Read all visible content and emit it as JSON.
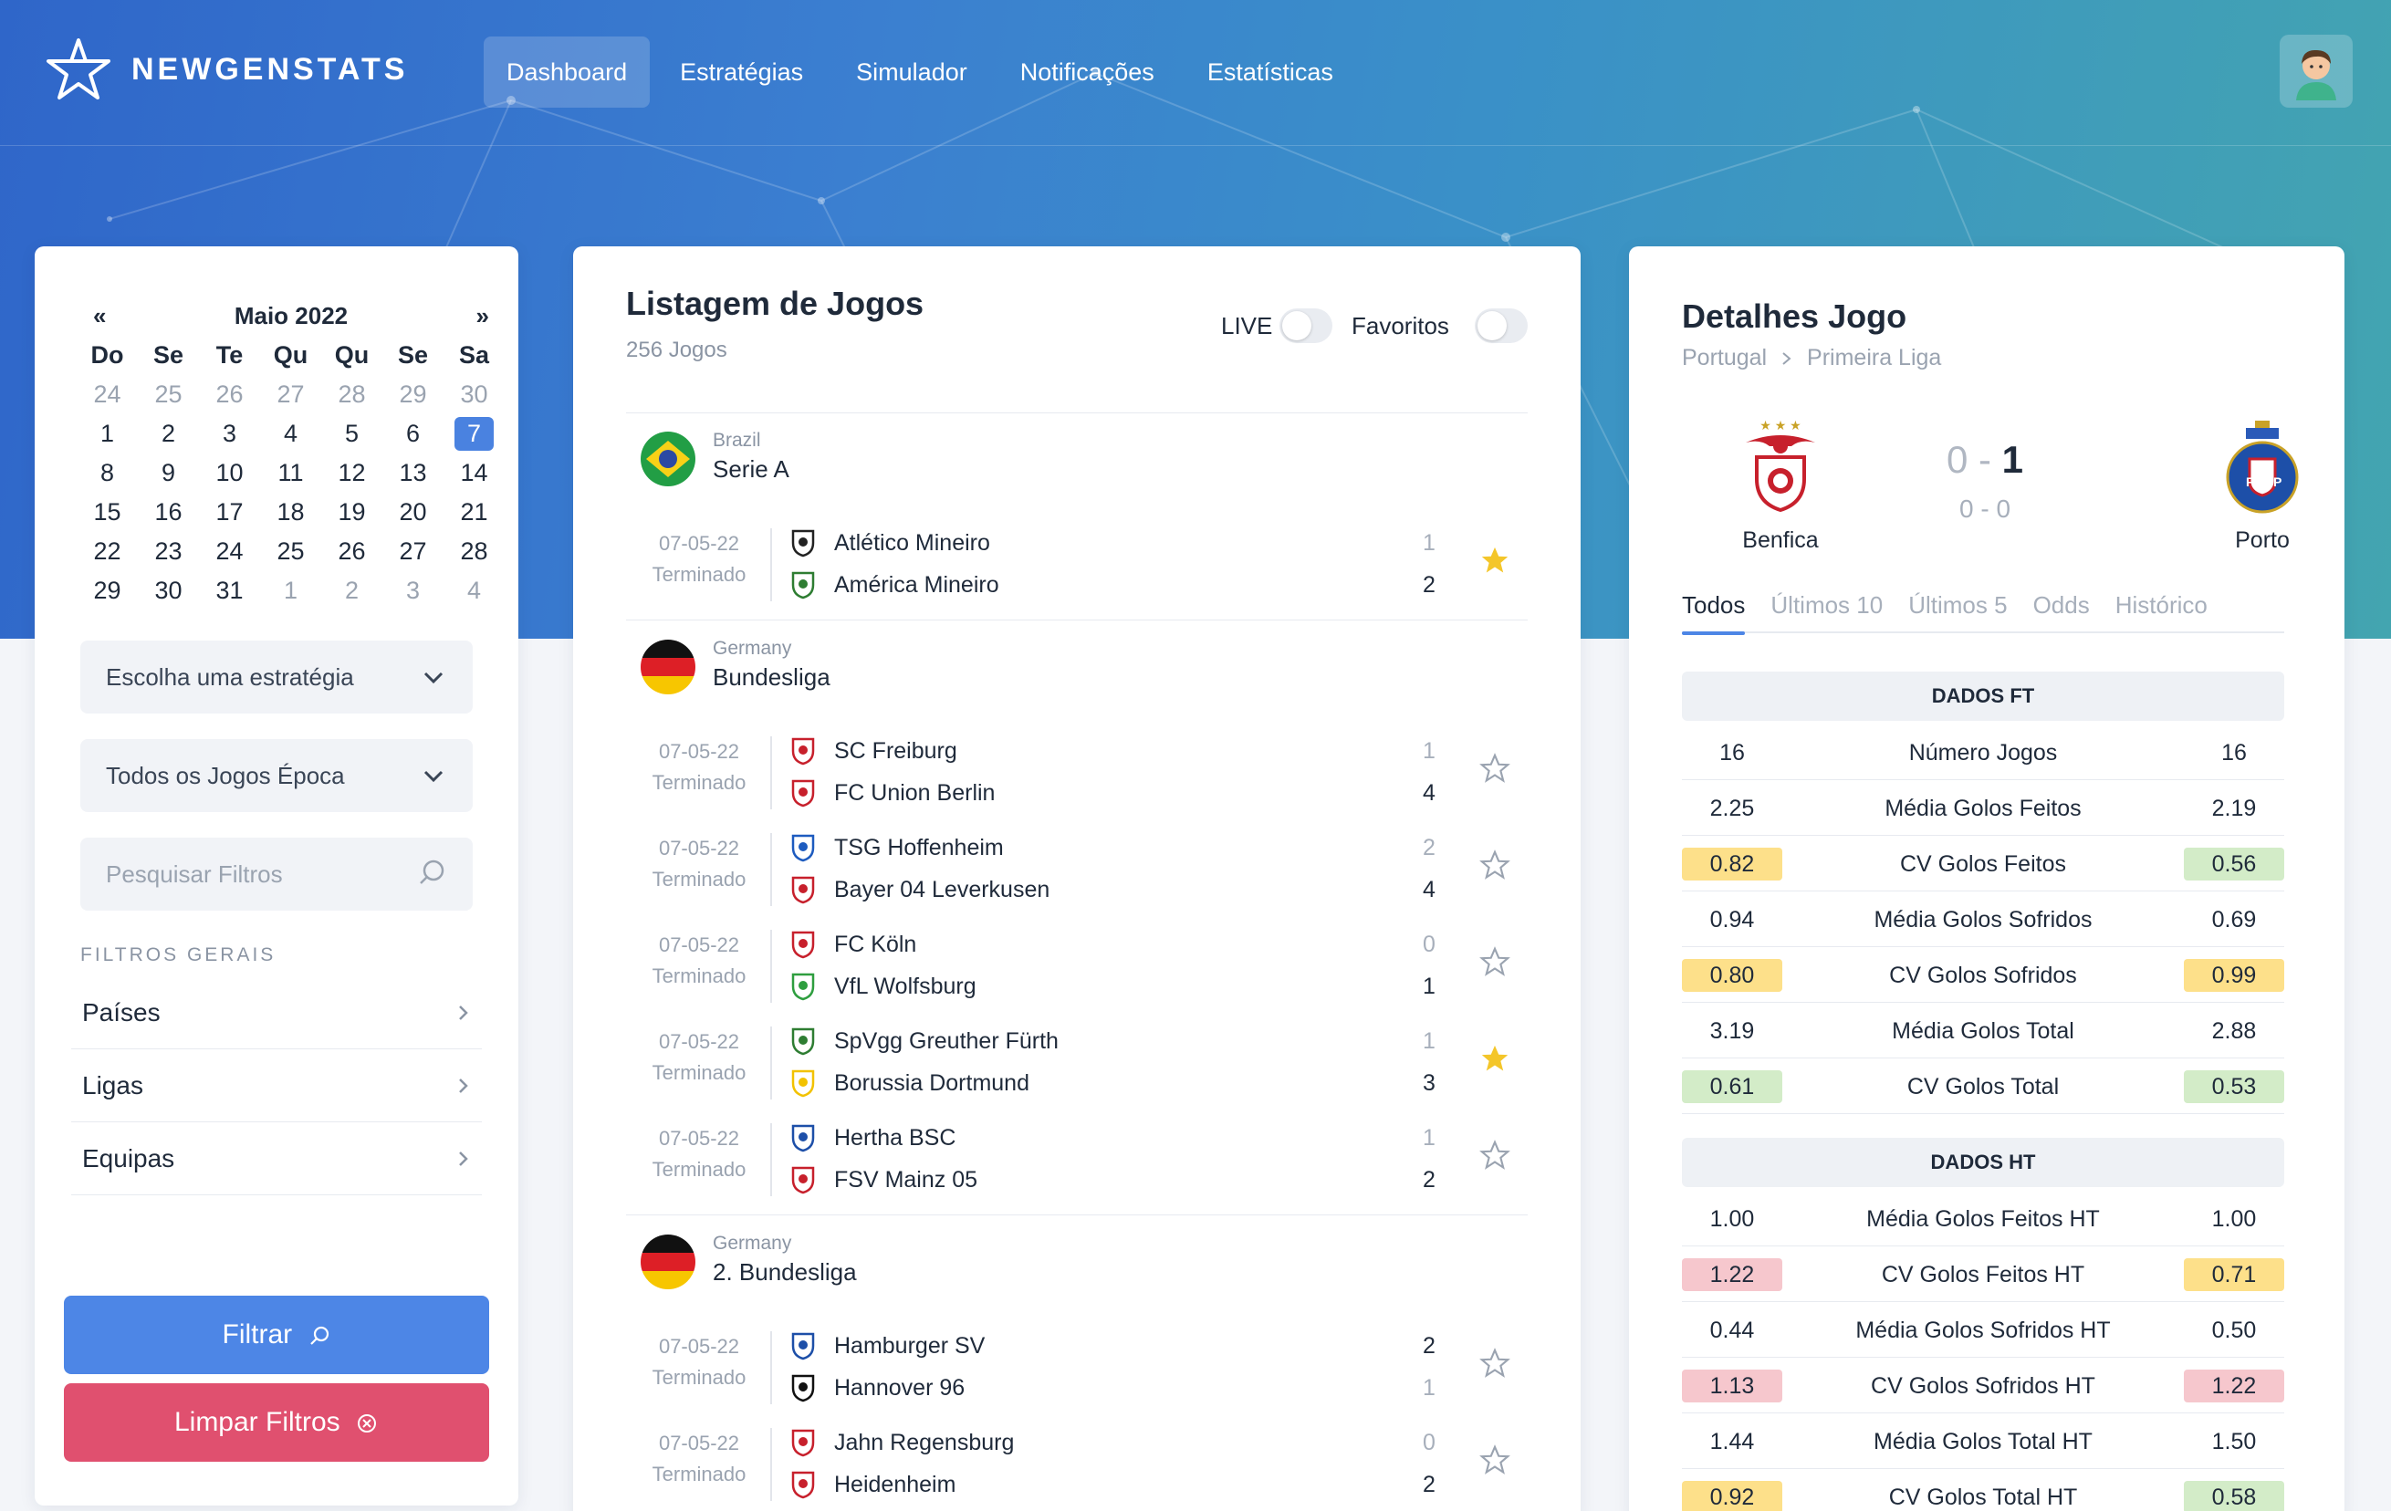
{
  "brand": {
    "name": "NEWGENSTATS"
  },
  "nav": [
    {
      "label": "Dashboard",
      "active": true
    },
    {
      "label": "Estratégias"
    },
    {
      "label": "Simulador"
    },
    {
      "label": "Notificações"
    },
    {
      "label": "Estatísticas"
    }
  ],
  "calendar": {
    "prev": "«",
    "next": "»",
    "month": "Maio 2022",
    "weekdays": [
      "Do",
      "Se",
      "Te",
      "Qu",
      "Qu",
      "Se",
      "Sa"
    ],
    "days": [
      {
        "d": "24",
        "m": true
      },
      {
        "d": "25",
        "m": true
      },
      {
        "d": "26",
        "m": true
      },
      {
        "d": "27",
        "m": true
      },
      {
        "d": "28",
        "m": true
      },
      {
        "d": "29",
        "m": true
      },
      {
        "d": "30",
        "m": true
      },
      {
        "d": "1"
      },
      {
        "d": "2"
      },
      {
        "d": "3"
      },
      {
        "d": "4"
      },
      {
        "d": "5"
      },
      {
        "d": "6"
      },
      {
        "d": "7",
        "s": true
      },
      {
        "d": "8"
      },
      {
        "d": "9"
      },
      {
        "d": "10"
      },
      {
        "d": "11"
      },
      {
        "d": "12"
      },
      {
        "d": "13"
      },
      {
        "d": "14"
      },
      {
        "d": "15"
      },
      {
        "d": "16"
      },
      {
        "d": "17"
      },
      {
        "d": "18"
      },
      {
        "d": "19"
      },
      {
        "d": "20"
      },
      {
        "d": "21"
      },
      {
        "d": "22"
      },
      {
        "d": "23"
      },
      {
        "d": "24"
      },
      {
        "d": "25"
      },
      {
        "d": "26"
      },
      {
        "d": "27"
      },
      {
        "d": "28"
      },
      {
        "d": "29"
      },
      {
        "d": "30"
      },
      {
        "d": "31"
      },
      {
        "d": "1",
        "m": true
      },
      {
        "d": "2",
        "m": true
      },
      {
        "d": "3",
        "m": true
      },
      {
        "d": "4",
        "m": true
      }
    ]
  },
  "filters": {
    "strategy_placeholder": "Escolha uma estratégia",
    "season_select": "Todos os Jogos Época",
    "search_placeholder": "Pesquisar Filtros",
    "section_title": "FILTROS GERAIS",
    "items": [
      "Países",
      "Ligas",
      "Equipas"
    ],
    "filter_button": "Filtrar",
    "clear_button": "Limpar Filtros"
  },
  "games": {
    "title": "Listagem de Jogos",
    "count": "256 Jogos",
    "live_label": "LIVE",
    "fav_label": "Favoritos",
    "leagues": [
      {
        "country": "Brazil",
        "name": "Serie A",
        "flag": "brazil",
        "matches": [
          {
            "date": "07-05-22",
            "status": "Terminado",
            "home": "Atlético Mineiro",
            "away": "América Mineiro",
            "hs": "1",
            "as": "2",
            "fav": true
          }
        ]
      },
      {
        "country": "Germany",
        "name": "Bundesliga",
        "flag": "germany",
        "matches": [
          {
            "date": "07-05-22",
            "status": "Terminado",
            "home": "SC Freiburg",
            "away": "FC Union Berlin",
            "hs": "1",
            "as": "4",
            "fav": false
          },
          {
            "date": "07-05-22",
            "status": "Terminado",
            "home": "TSG Hoffenheim",
            "away": "Bayer 04 Leverkusen",
            "hs": "2",
            "as": "4",
            "fav": false
          },
          {
            "date": "07-05-22",
            "status": "Terminado",
            "home": "FC Köln",
            "away": "VfL Wolfsburg",
            "hs": "0",
            "as": "1",
            "fav": false
          },
          {
            "date": "07-05-22",
            "status": "Terminado",
            "home": "SpVgg Greuther Fürth",
            "away": "Borussia Dortmund",
            "hs": "1",
            "as": "3",
            "fav": true
          },
          {
            "date": "07-05-22",
            "status": "Terminado",
            "home": "Hertha BSC",
            "away": "FSV Mainz 05",
            "hs": "1",
            "as": "2",
            "fav": false
          }
        ]
      },
      {
        "country": "Germany",
        "name": "2. Bundesliga",
        "flag": "germany",
        "matches": [
          {
            "date": "07-05-22",
            "status": "Terminado",
            "home": "Hamburger SV",
            "away": "Hannover 96",
            "hs": "2",
            "as": "1",
            "fav": false
          },
          {
            "date": "07-05-22",
            "status": "Terminado",
            "home": "Jahn Regensburg",
            "away": "Heidenheim",
            "hs": "0",
            "as": "2",
            "fav": false
          }
        ]
      }
    ]
  },
  "details": {
    "title": "Detalhes Jogo",
    "country": "Portugal",
    "league": "Primeira Liga",
    "home": "Benfica",
    "away": "Porto",
    "ft_home": "0",
    "ft_sep": "-",
    "ft_away": "1",
    "ht": "0 - 0",
    "tabs": [
      "Todos",
      "Últimos 10",
      "Últimos 5",
      "Odds",
      "Histórico"
    ],
    "sections": [
      {
        "title": "DADOS FT",
        "rows": [
          {
            "l": "16",
            "label": "Número Jogos",
            "r": "16",
            "lc": "",
            "rc": ""
          },
          {
            "l": "2.25",
            "label": "Média Golos Feitos",
            "r": "2.19",
            "lc": "",
            "rc": ""
          },
          {
            "l": "0.82",
            "label": "CV Golos Feitos",
            "r": "0.56",
            "lc": "#fde08a",
            "rc": "#d3ecc8"
          },
          {
            "l": "0.94",
            "label": "Média Golos Sofridos",
            "r": "0.69",
            "lc": "",
            "rc": ""
          },
          {
            "l": "0.80",
            "label": "CV Golos Sofridos",
            "r": "0.99",
            "lc": "#fde08a",
            "rc": "#fde08a"
          },
          {
            "l": "3.19",
            "label": "Média Golos Total",
            "r": "2.88",
            "lc": "",
            "rc": ""
          },
          {
            "l": "0.61",
            "label": "CV Golos Total",
            "r": "0.53",
            "lc": "#d3ecc8",
            "rc": "#d3ecc8"
          }
        ]
      },
      {
        "title": "DADOS HT",
        "rows": [
          {
            "l": "1.00",
            "label": "Média Golos Feitos HT",
            "r": "1.00",
            "lc": "",
            "rc": ""
          },
          {
            "l": "1.22",
            "label": "CV Golos Feitos HT",
            "r": "0.71",
            "lc": "#f6c7cd",
            "rc": "#fde08a"
          },
          {
            "l": "0.44",
            "label": "Média Golos Sofridos HT",
            "r": "0.50",
            "lc": "",
            "rc": ""
          },
          {
            "l": "1.13",
            "label": "CV Golos Sofridos HT",
            "r": "1.22",
            "lc": "#f6c7cd",
            "rc": "#f6c7cd"
          },
          {
            "l": "1.44",
            "label": "Média Golos Total HT",
            "r": "1.50",
            "lc": "",
            "rc": ""
          },
          {
            "l": "0.92",
            "label": "CV Golos Total HT",
            "r": "0.58",
            "lc": "#fde08a",
            "rc": "#d3ecc8"
          }
        ]
      }
    ]
  }
}
